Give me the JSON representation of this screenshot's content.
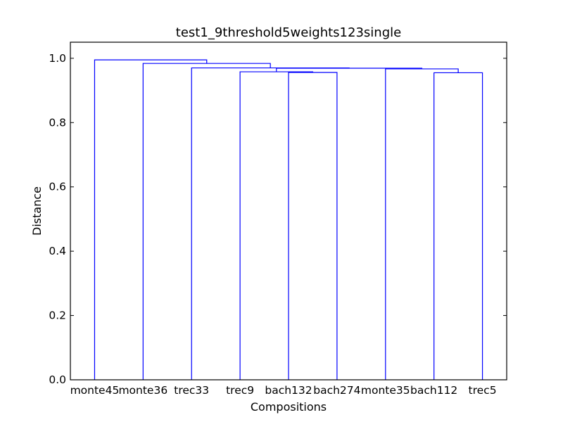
{
  "chart_data": {
    "type": "dendrogram",
    "title": "test1_9threshold5weights123single",
    "xlabel": "Compositions",
    "ylabel": "Distance",
    "leaves": [
      "monte45",
      "monte36",
      "trec33",
      "trec9",
      "bach132",
      "bach274",
      "monte35",
      "bach112",
      "trec5"
    ],
    "yticks": [
      "0.0",
      "0.2",
      "0.4",
      "0.6",
      "0.8",
      "1.0"
    ],
    "ytick_values": [
      0.0,
      0.2,
      0.4,
      0.6,
      0.8,
      1.0
    ],
    "ylim": [
      0,
      1.05
    ],
    "grid": false,
    "line_color": "#0000ff",
    "merges": [
      {
        "a": "bach132",
        "b": "bach274",
        "height": 0.956
      },
      {
        "a": "trec9",
        "b": "m1",
        "height": 0.958
      },
      {
        "a": "bach112",
        "b": "trec5",
        "height": 0.955
      },
      {
        "a": "monte35",
        "b": "m3",
        "height": 0.967
      },
      {
        "a": "m2",
        "b": "m4",
        "height": 0.969
      },
      {
        "a": "trec33",
        "b": "m5",
        "height": 0.97
      },
      {
        "a": "monte36",
        "b": "m6",
        "height": 0.984
      },
      {
        "a": "monte45",
        "b": "m7",
        "height": 0.995
      }
    ]
  }
}
